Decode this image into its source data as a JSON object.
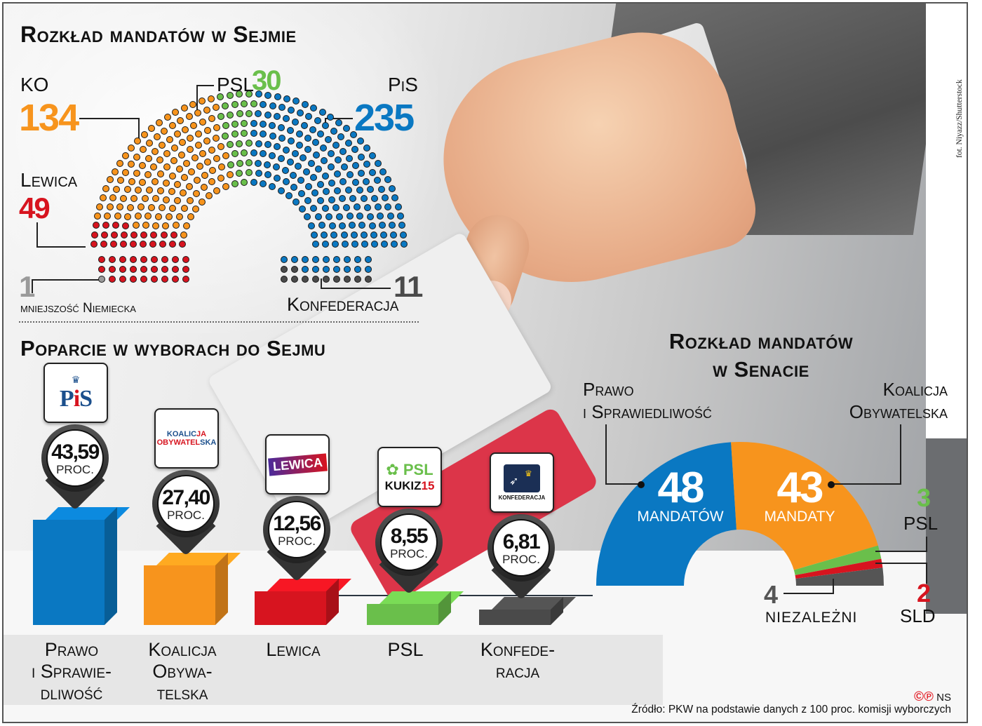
{
  "sejm": {
    "title": "Rozkład mandatów w Sejmie",
    "total_seats": 460,
    "parties": [
      {
        "key": "ko",
        "label": "KO",
        "seats": "134",
        "color": "#f7941d"
      },
      {
        "key": "psl",
        "label": "PSL",
        "seats": "30",
        "color": "#6abf4b"
      },
      {
        "key": "pis",
        "label": "PiS",
        "seats": "235",
        "color": "#0a78c2"
      },
      {
        "key": "lewica",
        "label": "Lewica",
        "seats": "49",
        "color": "#d7141f"
      },
      {
        "key": "mn",
        "label": "mniejszość Niemiecka",
        "seats": "1",
        "color": "#9a9a9a"
      },
      {
        "key": "konf",
        "label": "Konfederacja",
        "seats": "11",
        "color": "#4a4a4a"
      }
    ]
  },
  "support": {
    "title": "Poparcie w wyborach do Sejmu",
    "unit": "PROC.",
    "parties": [
      {
        "name_lines": [
          "Prawo",
          "i Sprawie-",
          "dliwość"
        ],
        "value": "43,59",
        "logo": "PiS",
        "color": "#0a78c2"
      },
      {
        "name_lines": [
          "Koalicja",
          "Obywa-",
          "telska"
        ],
        "value": "27,40",
        "logo_lines": [
          "KOALICJA",
          "OBYWATELSKA"
        ],
        "color": "#f7941d"
      },
      {
        "name_lines": [
          "Lewica"
        ],
        "value": "12,56",
        "logo": "LEWICA",
        "color": "#d7141f"
      },
      {
        "name_lines": [
          "PSL"
        ],
        "value": "8,55",
        "logo_lines": [
          "PSL",
          "KUKIZ15"
        ],
        "color": "#6abf4b"
      },
      {
        "name_lines": [
          "Konfede-",
          "racja"
        ],
        "value": "6,81",
        "logo": "KONFEDERACJA",
        "color": "#4a4a4a"
      }
    ]
  },
  "senate": {
    "title_lines": [
      "Rozkład mandatów",
      "w Senacie"
    ],
    "total_seats": 100,
    "parties": [
      {
        "label_lines": [
          "Prawo",
          "i Sprawiedliwość"
        ],
        "seats": "48",
        "unit": "MANDATÓW",
        "color": "#0a78c2"
      },
      {
        "label_lines": [
          "Koalicja",
          "Obywatelska"
        ],
        "seats": "43",
        "unit": "MANDATY",
        "color": "#f7941d"
      },
      {
        "label": "PSL",
        "seats": "3",
        "color": "#6abf4b"
      },
      {
        "label": "SLD",
        "seats": "2",
        "color": "#d7141f"
      },
      {
        "label": "NIEZALEŻNI",
        "seats": "4",
        "color": "#555555"
      }
    ]
  },
  "footer": {
    "copyright_mark": "©℗",
    "author": "NS",
    "source": "Źródło: PKW na podstawie danych z 100 proc. komisji wyborczych"
  },
  "photo_credit": "fot. Niyazz/Shutterstock",
  "chart_data": [
    {
      "type": "parliament",
      "title": "Rozkład mandatów w Sejmie",
      "categories": [
        "KO",
        "PSL",
        "PiS",
        "Lewica",
        "mniejszość Niemiecka",
        "Konfederacja"
      ],
      "values": [
        134,
        30,
        235,
        49,
        1,
        11
      ],
      "colors": [
        "#f7941d",
        "#6abf4b",
        "#0a78c2",
        "#d7141f",
        "#9a9a9a",
        "#4a4a4a"
      ],
      "total": 460
    },
    {
      "type": "bar",
      "title": "Poparcie w wyborach do Sejmu",
      "categories": [
        "Prawo i Sprawiedliwość",
        "Koalicja Obywatelska",
        "Lewica",
        "PSL",
        "Konfederacja"
      ],
      "values": [
        43.59,
        27.4,
        12.56,
        8.55,
        6.81
      ],
      "ylabel": "proc.",
      "xlabel": ""
    },
    {
      "type": "pie",
      "subtype": "half-donut",
      "title": "Rozkład mandatów w Senacie",
      "categories": [
        "Prawo i Sprawiedliwość",
        "Koalicja Obywatelska",
        "PSL",
        "SLD",
        "Niezależni"
      ],
      "values": [
        48,
        43,
        3,
        2,
        4
      ],
      "total": 100
    }
  ]
}
